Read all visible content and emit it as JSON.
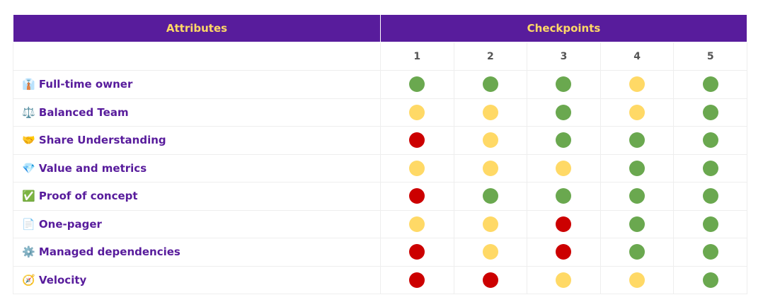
{
  "header": {
    "attributes": "Attributes",
    "checkpoints": "Checkpoints"
  },
  "checkpoints": [
    1,
    2,
    3,
    4,
    5
  ],
  "colors": {
    "green": "#6aa84f",
    "yellow": "#ffd966",
    "red": "#cc0000"
  },
  "rows": [
    {
      "label": "👔 Full-time owner",
      "statuses": [
        "green",
        "green",
        "green",
        "yellow",
        "green"
      ]
    },
    {
      "label": "⚖️ Balanced Team",
      "statuses": [
        "yellow",
        "yellow",
        "green",
        "yellow",
        "green"
      ]
    },
    {
      "label": "🤝 Share Understanding",
      "statuses": [
        "red",
        "yellow",
        "green",
        "green",
        "green"
      ]
    },
    {
      "label": "💎 Value and metrics",
      "statuses": [
        "yellow",
        "yellow",
        "yellow",
        "green",
        "green"
      ]
    },
    {
      "label": "✅ Proof of concept",
      "statuses": [
        "red",
        "green",
        "green",
        "green",
        "green"
      ]
    },
    {
      "label": "📄 One-pager",
      "statuses": [
        "yellow",
        "yellow",
        "red",
        "green",
        "green"
      ]
    },
    {
      "label": "⚙️ Managed dependencies",
      "statuses": [
        "red",
        "yellow",
        "red",
        "green",
        "green"
      ]
    },
    {
      "label": "🧭 Velocity",
      "statuses": [
        "red",
        "red",
        "yellow",
        "yellow",
        "green"
      ]
    }
  ]
}
